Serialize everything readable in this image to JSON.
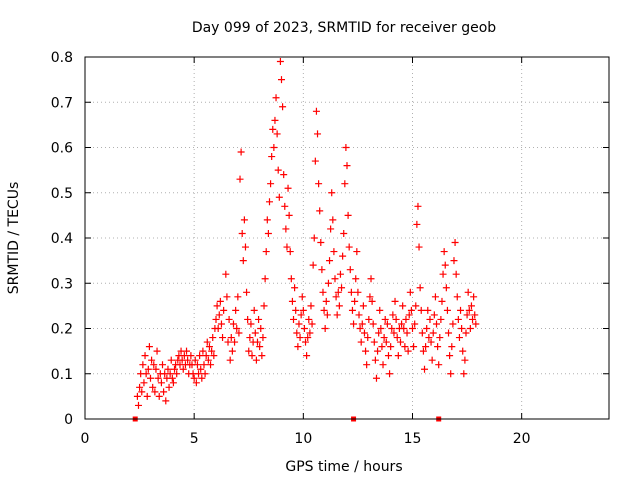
{
  "chart_data": {
    "type": "scatter",
    "title": "Day 099 of 2023, SRMTID for receiver geob",
    "xlabel": "GPS time / hours",
    "ylabel": "SRMTID / TECUs",
    "xlim": [
      0,
      24
    ],
    "ylim": [
      0,
      0.8
    ],
    "x_ticks": [
      0,
      5,
      10,
      15,
      20
    ],
    "x_tick_labels": [
      "0",
      "5",
      "10",
      "15",
      "20"
    ],
    "y_ticks": [
      0,
      0.1,
      0.2,
      0.3,
      0.4,
      0.5,
      0.6,
      0.7,
      0.8
    ],
    "y_tick_labels": [
      "0",
      "0.1",
      "0.2",
      "0.3",
      "0.4",
      "0.5",
      "0.6",
      "0.7",
      "0.8"
    ],
    "grid": true,
    "marker": "+",
    "color": "#ff0000",
    "zero_markers_x": [
      2.3,
      12.3,
      16.2
    ],
    "series": [
      {
        "name": "SRMTID",
        "points": [
          [
            2.4,
            0.05
          ],
          [
            2.45,
            0.03
          ],
          [
            2.5,
            0.07
          ],
          [
            2.55,
            0.1
          ],
          [
            2.6,
            0.06
          ],
          [
            2.65,
            0.12
          ],
          [
            2.7,
            0.08
          ],
          [
            2.75,
            0.14
          ],
          [
            2.8,
            0.1
          ],
          [
            2.85,
            0.05
          ],
          [
            2.9,
            0.11
          ],
          [
            2.95,
            0.16
          ],
          [
            3.0,
            0.09
          ],
          [
            3.05,
            0.13
          ],
          [
            3.1,
            0.07
          ],
          [
            3.15,
            0.12
          ],
          [
            3.2,
            0.06
          ],
          [
            3.25,
            0.11
          ],
          [
            3.3,
            0.15
          ],
          [
            3.35,
            0.09
          ],
          [
            3.4,
            0.05
          ],
          [
            3.45,
            0.1
          ],
          [
            3.5,
            0.08
          ],
          [
            3.55,
            0.12
          ],
          [
            3.6,
            0.06
          ],
          [
            3.65,
            0.1
          ],
          [
            3.7,
            0.04
          ],
          [
            3.75,
            0.09
          ],
          [
            3.8,
            0.11
          ],
          [
            3.85,
            0.07
          ],
          [
            3.9,
            0.1
          ],
          [
            3.95,
            0.13
          ],
          [
            4.0,
            0.09
          ],
          [
            4.05,
            0.08
          ],
          [
            4.1,
            0.11
          ],
          [
            4.15,
            0.12
          ],
          [
            4.2,
            0.1
          ],
          [
            4.25,
            0.13
          ],
          [
            4.3,
            0.14
          ],
          [
            4.35,
            0.12
          ],
          [
            4.4,
            0.15
          ],
          [
            4.45,
            0.13
          ],
          [
            4.5,
            0.11
          ],
          [
            4.55,
            0.14
          ],
          [
            4.6,
            0.12
          ],
          [
            4.65,
            0.15
          ],
          [
            4.7,
            0.13
          ],
          [
            4.75,
            0.1
          ],
          [
            4.8,
            0.12
          ],
          [
            4.85,
            0.14
          ],
          [
            4.9,
            0.12
          ],
          [
            4.95,
            0.1
          ],
          [
            5.0,
            0.09
          ],
          [
            5.05,
            0.13
          ],
          [
            5.1,
            0.08
          ],
          [
            5.15,
            0.12
          ],
          [
            5.2,
            0.1
          ],
          [
            5.25,
            0.14
          ],
          [
            5.3,
            0.11
          ],
          [
            5.35,
            0.09
          ],
          [
            5.4,
            0.15
          ],
          [
            5.45,
            0.12
          ],
          [
            5.5,
            0.1
          ],
          [
            5.55,
            0.14
          ],
          [
            5.6,
            0.17
          ],
          [
            5.65,
            0.13
          ],
          [
            5.7,
            0.16
          ],
          [
            5.75,
            0.12
          ],
          [
            5.8,
            0.15
          ],
          [
            5.85,
            0.18
          ],
          [
            5.9,
            0.14
          ],
          [
            5.95,
            0.2
          ],
          [
            6.0,
            0.22
          ],
          [
            6.05,
            0.25
          ],
          [
            6.1,
            0.2
          ],
          [
            6.15,
            0.23
          ],
          [
            6.2,
            0.26
          ],
          [
            6.25,
            0.21
          ],
          [
            6.3,
            0.18
          ],
          [
            6.35,
            0.24
          ],
          [
            6.45,
            0.32
          ],
          [
            6.5,
            0.27
          ],
          [
            6.55,
            0.17
          ],
          [
            6.6,
            0.22
          ],
          [
            6.65,
            0.13
          ],
          [
            6.7,
            0.18
          ],
          [
            6.75,
            0.15
          ],
          [
            6.8,
            0.21
          ],
          [
            6.85,
            0.17
          ],
          [
            6.9,
            0.24
          ],
          [
            6.95,
            0.2
          ],
          [
            7.0,
            0.27
          ],
          [
            7.05,
            0.19
          ],
          [
            7.1,
            0.53
          ],
          [
            7.15,
            0.59
          ],
          [
            7.2,
            0.41
          ],
          [
            7.25,
            0.35
          ],
          [
            7.3,
            0.44
          ],
          [
            7.35,
            0.38
          ],
          [
            7.4,
            0.28
          ],
          [
            7.45,
            0.22
          ],
          [
            7.5,
            0.15
          ],
          [
            7.55,
            0.18
          ],
          [
            7.6,
            0.21
          ],
          [
            7.65,
            0.14
          ],
          [
            7.7,
            0.17
          ],
          [
            7.75,
            0.24
          ],
          [
            7.8,
            0.19
          ],
          [
            7.85,
            0.13
          ],
          [
            7.9,
            0.17
          ],
          [
            7.95,
            0.22
          ],
          [
            8.0,
            0.16
          ],
          [
            8.05,
            0.2
          ],
          [
            8.1,
            0.14
          ],
          [
            8.15,
            0.18
          ],
          [
            8.2,
            0.25
          ],
          [
            8.25,
            0.31
          ],
          [
            8.3,
            0.37
          ],
          [
            8.35,
            0.44
          ],
          [
            8.4,
            0.41
          ],
          [
            8.45,
            0.48
          ],
          [
            8.5,
            0.52
          ],
          [
            8.55,
            0.58
          ],
          [
            8.6,
            0.64
          ],
          [
            8.65,
            0.6
          ],
          [
            8.7,
            0.66
          ],
          [
            8.75,
            0.71
          ],
          [
            8.8,
            0.63
          ],
          [
            8.85,
            0.55
          ],
          [
            8.9,
            0.49
          ],
          [
            8.95,
            0.79
          ],
          [
            9.0,
            0.75
          ],
          [
            9.05,
            0.69
          ],
          [
            9.1,
            0.54
          ],
          [
            9.15,
            0.47
          ],
          [
            9.2,
            0.42
          ],
          [
            9.25,
            0.38
          ],
          [
            9.3,
            0.51
          ],
          [
            9.35,
            0.45
          ],
          [
            9.4,
            0.37
          ],
          [
            9.45,
            0.31
          ],
          [
            9.5,
            0.26
          ],
          [
            9.55,
            0.22
          ],
          [
            9.6,
            0.29
          ],
          [
            9.65,
            0.24
          ],
          [
            9.7,
            0.19
          ],
          [
            9.75,
            0.16
          ],
          [
            9.8,
            0.21
          ],
          [
            9.85,
            0.18
          ],
          [
            9.9,
            0.23
          ],
          [
            9.95,
            0.27
          ],
          [
            10.0,
            0.24
          ],
          [
            10.05,
            0.2
          ],
          [
            10.1,
            0.17
          ],
          [
            10.15,
            0.14
          ],
          [
            10.2,
            0.18
          ],
          [
            10.25,
            0.22
          ],
          [
            10.3,
            0.19
          ],
          [
            10.35,
            0.25
          ],
          [
            10.4,
            0.21
          ],
          [
            10.45,
            0.34
          ],
          [
            10.5,
            0.4
          ],
          [
            10.55,
            0.57
          ],
          [
            10.6,
            0.68
          ],
          [
            10.65,
            0.63
          ],
          [
            10.7,
            0.52
          ],
          [
            10.75,
            0.46
          ],
          [
            10.8,
            0.39
          ],
          [
            10.85,
            0.33
          ],
          [
            10.9,
            0.28
          ],
          [
            10.95,
            0.24
          ],
          [
            11.0,
            0.2
          ],
          [
            11.05,
            0.26
          ],
          [
            11.1,
            0.23
          ],
          [
            11.15,
            0.3
          ],
          [
            11.2,
            0.35
          ],
          [
            11.25,
            0.42
          ],
          [
            11.3,
            0.5
          ],
          [
            11.35,
            0.44
          ],
          [
            11.4,
            0.37
          ],
          [
            11.45,
            0.31
          ],
          [
            11.5,
            0.27
          ],
          [
            11.55,
            0.23
          ],
          [
            11.6,
            0.28
          ],
          [
            11.65,
            0.25
          ],
          [
            11.7,
            0.32
          ],
          [
            11.75,
            0.29
          ],
          [
            11.8,
            0.36
          ],
          [
            11.85,
            0.41
          ],
          [
            11.9,
            0.52
          ],
          [
            11.95,
            0.6
          ],
          [
            12.0,
            0.56
          ],
          [
            12.05,
            0.45
          ],
          [
            12.1,
            0.38
          ],
          [
            12.15,
            0.33
          ],
          [
            12.2,
            0.28
          ],
          [
            12.25,
            0.24
          ],
          [
            12.3,
            0.21
          ],
          [
            12.35,
            0.26
          ],
          [
            12.4,
            0.31
          ],
          [
            12.45,
            0.37
          ],
          [
            12.5,
            0.28
          ],
          [
            12.55,
            0.23
          ],
          [
            12.6,
            0.2
          ],
          [
            12.65,
            0.17
          ],
          [
            12.7,
            0.21
          ],
          [
            12.75,
            0.25
          ],
          [
            12.8,
            0.19
          ],
          [
            12.85,
            0.15
          ],
          [
            12.9,
            0.12
          ],
          [
            12.95,
            0.18
          ],
          [
            13.0,
            0.22
          ],
          [
            13.05,
            0.27
          ],
          [
            13.1,
            0.31
          ],
          [
            13.15,
            0.26
          ],
          [
            13.2,
            0.21
          ],
          [
            13.25,
            0.17
          ],
          [
            13.3,
            0.13
          ],
          [
            13.35,
            0.09
          ],
          [
            13.4,
            0.15
          ],
          [
            13.45,
            0.19
          ],
          [
            13.5,
            0.24
          ],
          [
            13.55,
            0.2
          ],
          [
            13.6,
            0.16
          ],
          [
            13.65,
            0.12
          ],
          [
            13.7,
            0.18
          ],
          [
            13.75,
            0.22
          ],
          [
            13.8,
            0.17
          ],
          [
            13.85,
            0.21
          ],
          [
            13.9,
            0.14
          ],
          [
            13.95,
            0.1
          ],
          [
            14.0,
            0.16
          ],
          [
            14.05,
            0.2
          ],
          [
            14.1,
            0.23
          ],
          [
            14.15,
            0.19
          ],
          [
            14.2,
            0.26
          ],
          [
            14.25,
            0.22
          ],
          [
            14.3,
            0.18
          ],
          [
            14.35,
            0.14
          ],
          [
            14.4,
            0.2
          ],
          [
            14.45,
            0.17
          ],
          [
            14.5,
            0.21
          ],
          [
            14.55,
            0.25
          ],
          [
            14.6,
            0.2
          ],
          [
            14.65,
            0.16
          ],
          [
            14.7,
            0.22
          ],
          [
            14.75,
            0.19
          ],
          [
            14.8,
            0.15
          ],
          [
            14.85,
            0.23
          ],
          [
            14.9,
            0.28
          ],
          [
            14.95,
            0.24
          ],
          [
            15.0,
            0.2
          ],
          [
            15.05,
            0.16
          ],
          [
            15.1,
            0.21
          ],
          [
            15.15,
            0.25
          ],
          [
            15.2,
            0.43
          ],
          [
            15.25,
            0.47
          ],
          [
            15.3,
            0.38
          ],
          [
            15.35,
            0.29
          ],
          [
            15.4,
            0.24
          ],
          [
            15.45,
            0.19
          ],
          [
            15.5,
            0.15
          ],
          [
            15.55,
            0.11
          ],
          [
            15.6,
            0.16
          ],
          [
            15.65,
            0.2
          ],
          [
            15.7,
            0.24
          ],
          [
            15.75,
            0.18
          ],
          [
            15.8,
            0.22
          ],
          [
            15.85,
            0.17
          ],
          [
            15.9,
            0.13
          ],
          [
            15.95,
            0.19
          ],
          [
            16.0,
            0.23
          ],
          [
            16.05,
            0.27
          ],
          [
            16.1,
            0.21
          ],
          [
            16.15,
            0.16
          ],
          [
            16.2,
            0.12
          ],
          [
            16.25,
            0.18
          ],
          [
            16.3,
            0.22
          ],
          [
            16.35,
            0.26
          ],
          [
            16.4,
            0.32
          ],
          [
            16.45,
            0.37
          ],
          [
            16.5,
            0.34
          ],
          [
            16.55,
            0.29
          ],
          [
            16.6,
            0.24
          ],
          [
            16.65,
            0.19
          ],
          [
            16.7,
            0.14
          ],
          [
            16.75,
            0.1
          ],
          [
            16.8,
            0.16
          ],
          [
            16.85,
            0.21
          ],
          [
            16.9,
            0.35
          ],
          [
            16.95,
            0.39
          ],
          [
            17.0,
            0.32
          ],
          [
            17.05,
            0.27
          ],
          [
            17.1,
            0.22
          ],
          [
            17.15,
            0.18
          ],
          [
            17.2,
            0.24
          ],
          [
            17.25,
            0.2
          ],
          [
            17.3,
            0.15
          ],
          [
            17.35,
            0.1
          ],
          [
            17.4,
            0.13
          ],
          [
            17.45,
            0.19
          ],
          [
            17.5,
            0.23
          ],
          [
            17.55,
            0.28
          ],
          [
            17.6,
            0.24
          ],
          [
            17.65,
            0.2
          ],
          [
            17.7,
            0.25
          ],
          [
            17.75,
            0.22
          ],
          [
            17.8,
            0.27
          ],
          [
            17.85,
            0.23
          ],
          [
            17.9,
            0.21
          ]
        ]
      }
    ]
  }
}
